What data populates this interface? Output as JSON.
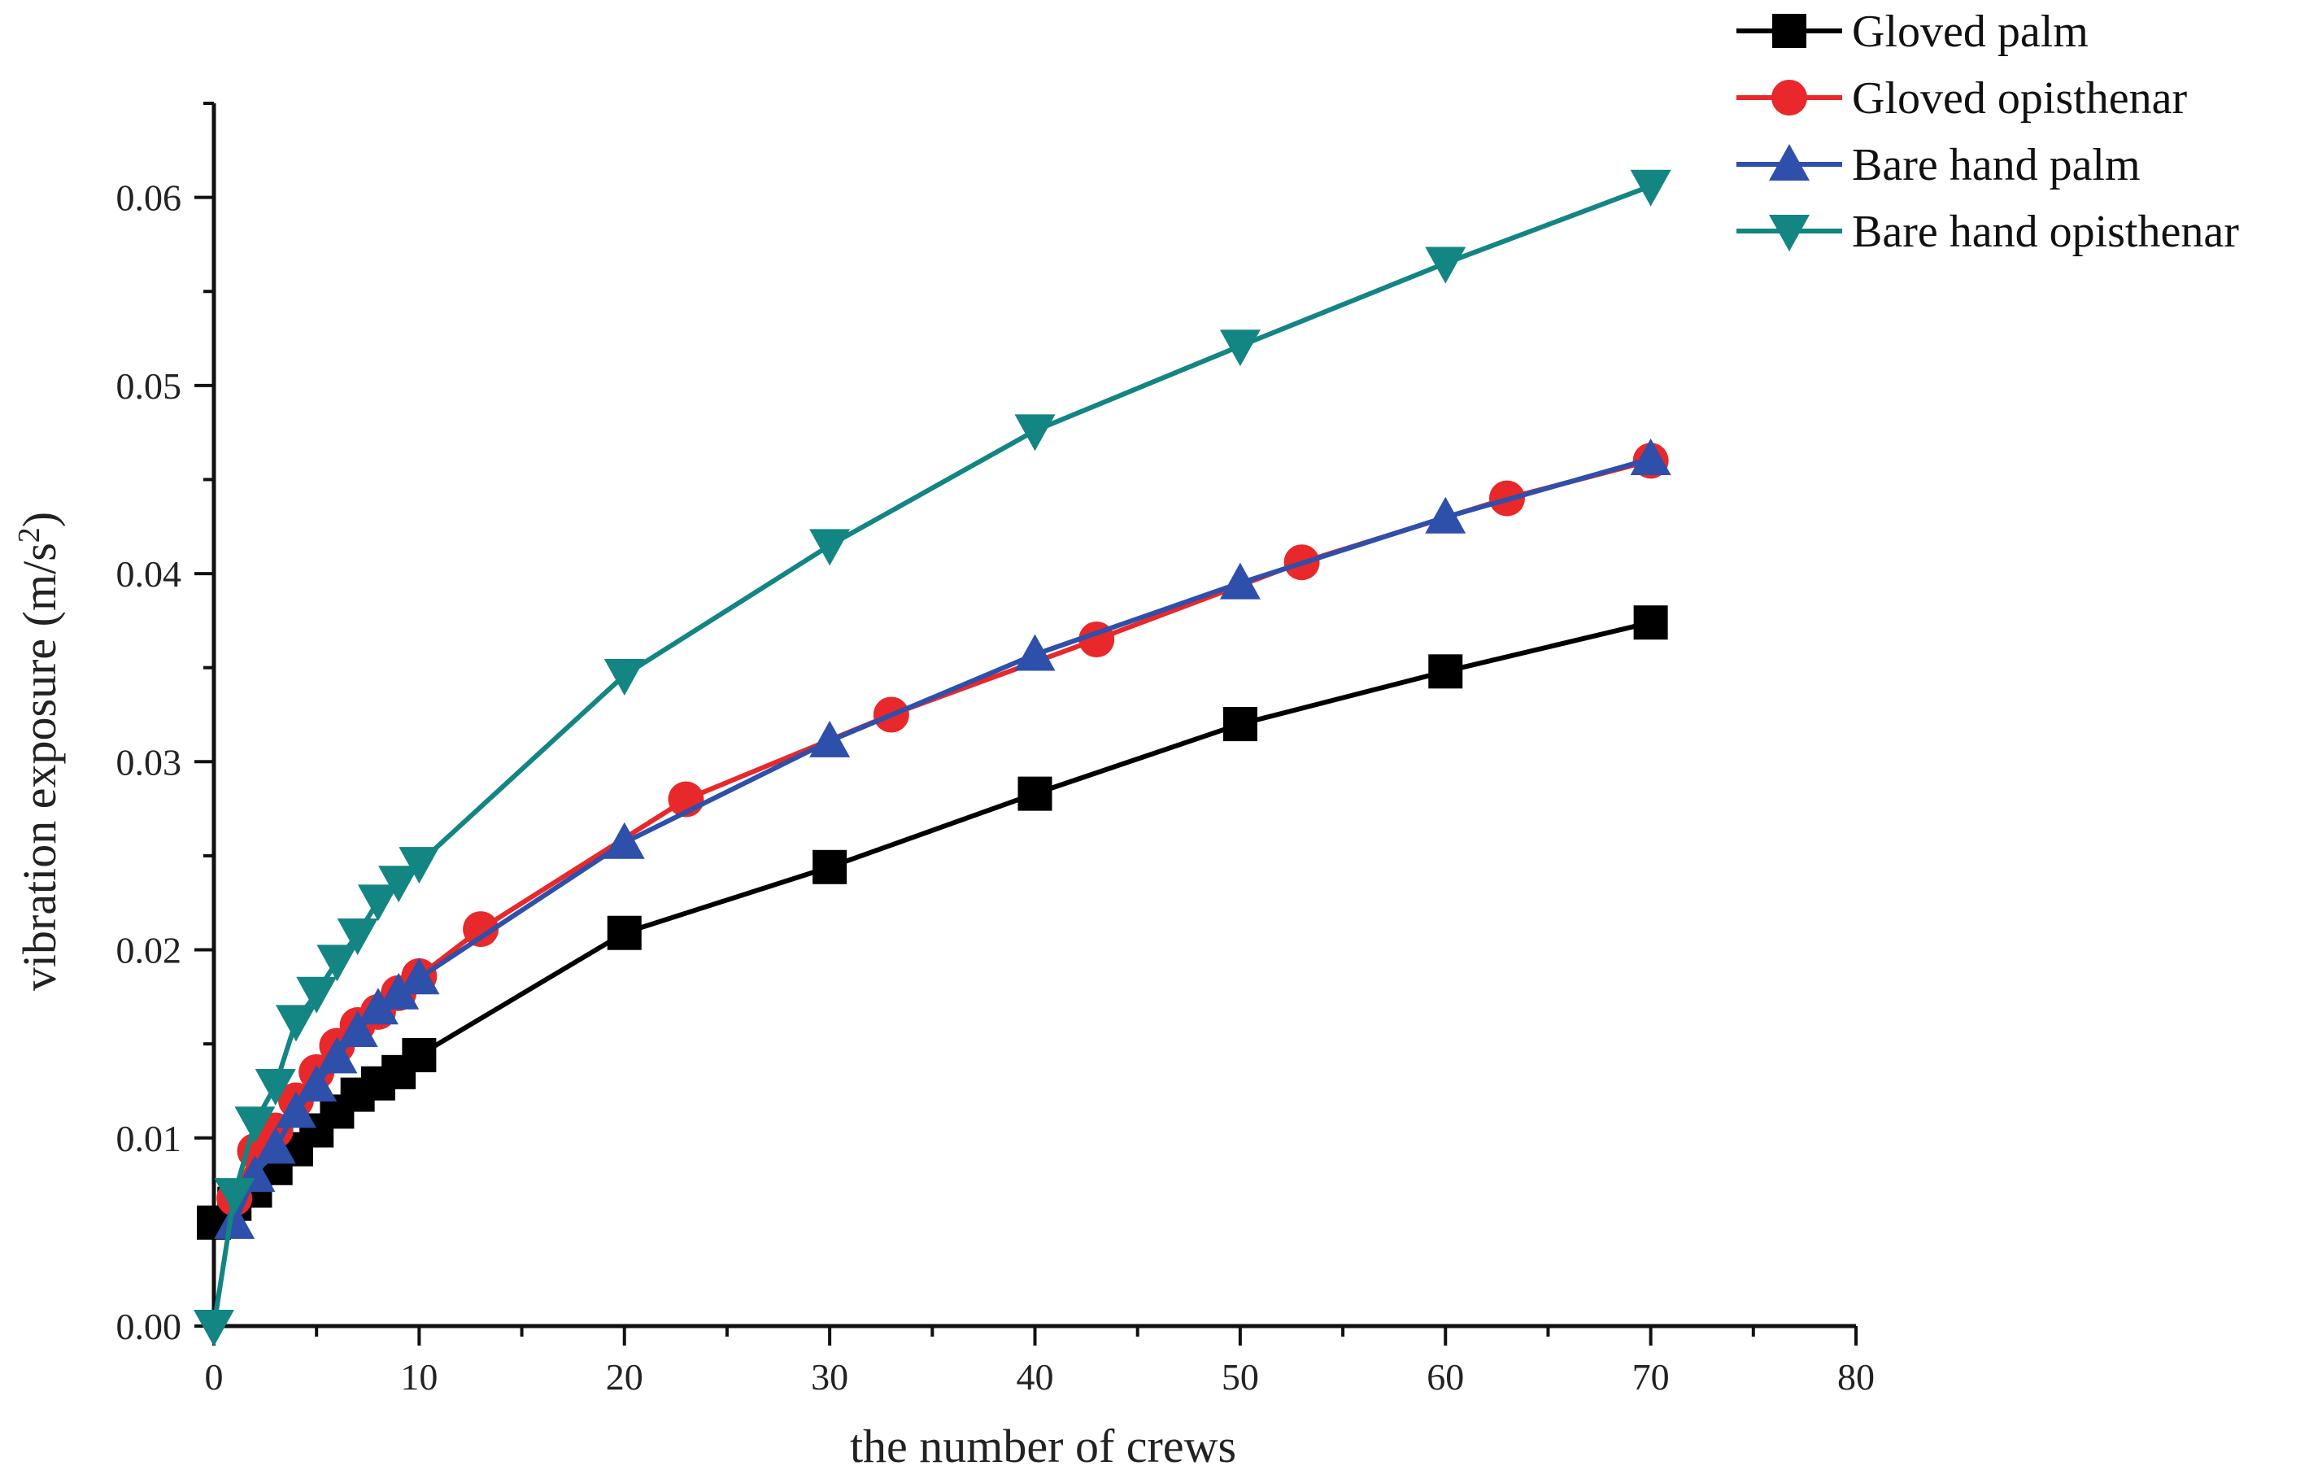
{
  "chart_data": {
    "type": "line",
    "title": "",
    "xlabel": "the number of crews",
    "ylabel_main": "vibration exposure (m/s",
    "ylabel_sup": "2",
    "ylabel_end": ")",
    "xlim": [
      0,
      80
    ],
    "ylim": [
      0,
      0.065
    ],
    "x_ticks": [
      0,
      10,
      20,
      30,
      40,
      50,
      60,
      70,
      80
    ],
    "x_tick_labels": [
      "0",
      "10",
      "20",
      "30",
      "40",
      "50",
      "60",
      "70",
      "80"
    ],
    "y_ticks": [
      0,
      0.01,
      0.02,
      0.03,
      0.04,
      0.05,
      0.06
    ],
    "y_tick_labels": [
      "0.00",
      "0.01",
      "0.02",
      "0.03",
      "0.04",
      "0.05",
      "0.06"
    ],
    "grid": false,
    "legend_position": "top-right",
    "series": [
      {
        "name": "Gloved palm",
        "color": "#000000",
        "marker": "square",
        "x": [
          0,
          1,
          2,
          3,
          4,
          5,
          6,
          7,
          8,
          9,
          10,
          20,
          30,
          40,
          50,
          60,
          70
        ],
        "y": [
          0.0055,
          0.0065,
          0.0072,
          0.0084,
          0.0094,
          0.0104,
          0.0114,
          0.0123,
          0.0129,
          0.0135,
          0.0144,
          0.0209,
          0.0244,
          0.0283,
          0.032,
          0.0348,
          0.0374
        ]
      },
      {
        "name": "Gloved opisthenar",
        "color": "#e8282a",
        "marker": "circle",
        "x": [
          1,
          2,
          3,
          4,
          5,
          6,
          7,
          8,
          9,
          10,
          13,
          23,
          33,
          43,
          53,
          63,
          70
        ],
        "y": [
          0.0068,
          0.0093,
          0.0104,
          0.012,
          0.0135,
          0.0149,
          0.016,
          0.0167,
          0.0177,
          0.0186,
          0.0211,
          0.028,
          0.0325,
          0.0365,
          0.0406,
          0.044,
          0.046
        ]
      },
      {
        "name": "Bare hand palm",
        "color": "#2e4faa",
        "marker": "triangle-up",
        "x": [
          1,
          2,
          3,
          4,
          5,
          6,
          7,
          8,
          9,
          10,
          20,
          30,
          40,
          50,
          60,
          70
        ],
        "y": [
          0.0055,
          0.008,
          0.0095,
          0.0114,
          0.0128,
          0.0143,
          0.0157,
          0.0169,
          0.0177,
          0.0185,
          0.0257,
          0.0311,
          0.0357,
          0.0395,
          0.043,
          0.0461
        ]
      },
      {
        "name": "Bare hand opisthenar",
        "color": "#138583",
        "marker": "triangle-down",
        "x": [
          0,
          1,
          2,
          3,
          4,
          5,
          6,
          7,
          8,
          9,
          10,
          20,
          30,
          40,
          50,
          60,
          70
        ],
        "y": [
          0.0,
          0.007,
          0.0108,
          0.0128,
          0.0162,
          0.0177,
          0.0194,
          0.0208,
          0.0226,
          0.0236,
          0.0246,
          0.0346,
          0.0415,
          0.0476,
          0.0521,
          0.0565,
          0.0606
        ]
      }
    ]
  }
}
